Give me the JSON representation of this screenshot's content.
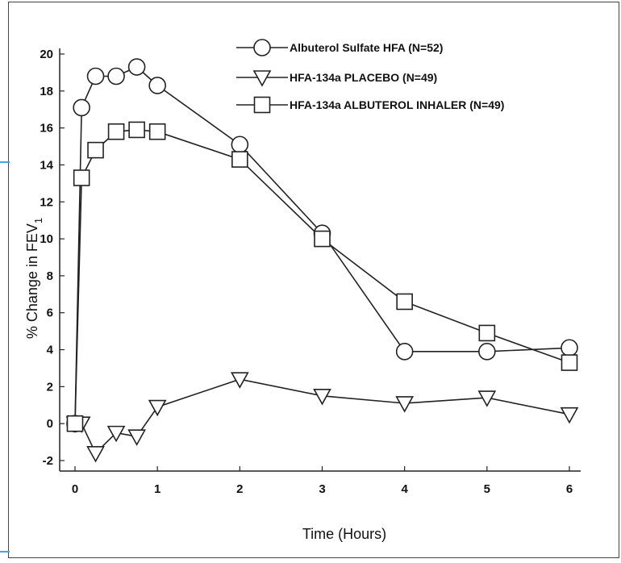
{
  "chart_data": {
    "type": "line",
    "xlabel": "Time (Hours)",
    "ylabel": "% Change in FEV1",
    "ylabel_main": "% Change in FEV",
    "ylabel_sub": "1",
    "xlim": [
      0,
      6
    ],
    "ylim": [
      -2,
      20
    ],
    "x_ticks": [
      0,
      1,
      2,
      3,
      4,
      5,
      6
    ],
    "y_ticks": [
      -2,
      0,
      2,
      4,
      6,
      8,
      10,
      12,
      14,
      16,
      18,
      20
    ],
    "grid": false,
    "legend_position": "top-right",
    "series": [
      {
        "name": "Albuterol Sulfate HFA (N=52)",
        "marker": "circle",
        "x": [
          0,
          0.08,
          0.25,
          0.5,
          0.75,
          1,
          2,
          3,
          4,
          5,
          6
        ],
        "y": [
          0,
          17.1,
          18.8,
          18.8,
          19.3,
          18.3,
          15.1,
          10.3,
          3.9,
          3.9,
          4.1
        ]
      },
      {
        "name": "HFA-134a PLACEBO (N=49)",
        "marker": "triangle-down",
        "x": [
          0,
          0.08,
          0.25,
          0.5,
          0.75,
          1,
          2,
          3,
          4,
          5,
          6
        ],
        "y": [
          0,
          0,
          -1.6,
          -0.5,
          -0.7,
          0.9,
          2.4,
          1.5,
          1.1,
          1.4,
          0.5
        ]
      },
      {
        "name": "HFA-134a ALBUTEROL INHALER (N=49)",
        "marker": "square",
        "x": [
          0,
          0.08,
          0.25,
          0.5,
          0.75,
          1,
          2,
          3,
          4,
          5,
          6
        ],
        "y": [
          0,
          13.3,
          14.8,
          15.8,
          15.9,
          15.8,
          14.3,
          10.0,
          6.6,
          4.9,
          3.3
        ]
      }
    ]
  }
}
